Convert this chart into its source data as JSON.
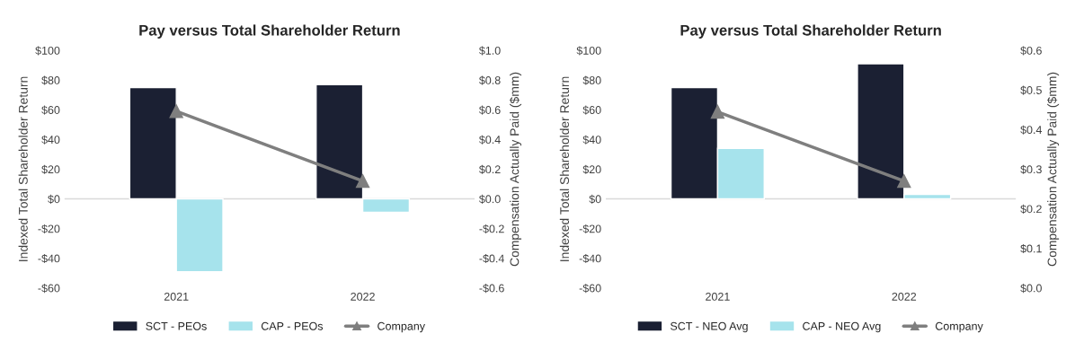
{
  "chart_data": [
    {
      "type": "bar",
      "title": "Pay versus Total Shareholder Return",
      "ylabel": "Indexed Total Shareholder Return",
      "y2label": "Compensation Actually Paid ($mm)",
      "categories": [
        "2021",
        "2022"
      ],
      "series": [
        {
          "name": "SCT - PEOs",
          "color": "#1b2033",
          "values": [
            75,
            77
          ]
        },
        {
          "name": "CAP - PEOs",
          "color": "#a6e3ec",
          "values": [
            -49,
            -9
          ]
        },
        {
          "name": "Company",
          "type": "line",
          "axis": "y2",
          "color": "#7f7f7f",
          "marker": "triangle",
          "values": [
            0.59,
            0.12
          ]
        }
      ],
      "ylim": [
        -60,
        100
      ],
      "yticks": [
        {
          "value": -60,
          "label": "-$60"
        },
        {
          "value": -40,
          "label": "-$40"
        },
        {
          "value": -20,
          "label": "-$20"
        },
        {
          "value": 0,
          "label": "$0"
        },
        {
          "value": 20,
          "label": "$20"
        },
        {
          "value": 40,
          "label": "$40"
        },
        {
          "value": 60,
          "label": "$60"
        },
        {
          "value": 80,
          "label": "$80"
        },
        {
          "value": 100,
          "label": "$100"
        }
      ],
      "ref_lines": [
        {
          "axis": "y",
          "value": 0,
          "color": "#d9d9d9"
        }
      ],
      "y2lim": [
        -0.6,
        1.0
      ],
      "y2ticks": [
        {
          "value": -0.6,
          "label": "-$0.6"
        },
        {
          "value": -0.4,
          "label": "-$0.4"
        },
        {
          "value": -0.2,
          "label": "-$0.2"
        },
        {
          "value": 0,
          "label": "$0.0"
        },
        {
          "value": 0.2,
          "label": "$0.2"
        },
        {
          "value": 0.4,
          "label": "$0.4"
        },
        {
          "value": 0.6,
          "label": "$0.6"
        },
        {
          "value": 0.8,
          "label": "$0.8"
        },
        {
          "value": 1.0,
          "label": "$1.0"
        }
      ],
      "grid": false,
      "legend": "bottom"
    },
    {
      "type": "bar",
      "title": "Pay versus Total Shareholder Return",
      "ylabel": "Indexed Total Shareholder Return",
      "y2label": "Compensation Actually Paid ($mm)",
      "categories": [
        "2021",
        "2022"
      ],
      "series": [
        {
          "name": "SCT - NEO Avg",
          "color": "#1b2033",
          "values": [
            75,
            91
          ]
        },
        {
          "name": "CAP - NEO Avg",
          "color": "#a6e3ec",
          "values": [
            34,
            3
          ]
        },
        {
          "name": "Company",
          "type": "line",
          "axis": "y2",
          "color": "#7f7f7f",
          "marker": "triangle",
          "values": [
            0.445,
            0.27
          ]
        }
      ],
      "ylim": [
        -60,
        100
      ],
      "yticks": [
        {
          "value": -60,
          "label": "-$60"
        },
        {
          "value": -40,
          "label": "-$40"
        },
        {
          "value": -20,
          "label": "-$20"
        },
        {
          "value": 0,
          "label": "$0"
        },
        {
          "value": 20,
          "label": "$20"
        },
        {
          "value": 40,
          "label": "$40"
        },
        {
          "value": 60,
          "label": "$60"
        },
        {
          "value": 80,
          "label": "$80"
        },
        {
          "value": 100,
          "label": "$100"
        }
      ],
      "ref_lines": [
        {
          "axis": "y",
          "value": 0,
          "color": "#d9d9d9"
        }
      ],
      "y2lim": [
        0.0,
        0.6
      ],
      "y2ticks": [
        {
          "value": 0.0,
          "label": "$0.0"
        },
        {
          "value": 0.1,
          "label": "$0.1"
        },
        {
          "value": 0.2,
          "label": "$0.2"
        },
        {
          "value": 0.3,
          "label": "$0.3"
        },
        {
          "value": 0.4,
          "label": "$0.4"
        },
        {
          "value": 0.5,
          "label": "$0.5"
        },
        {
          "value": 0.6,
          "label": "$0.6"
        }
      ],
      "grid": false,
      "legend": "bottom"
    }
  ]
}
